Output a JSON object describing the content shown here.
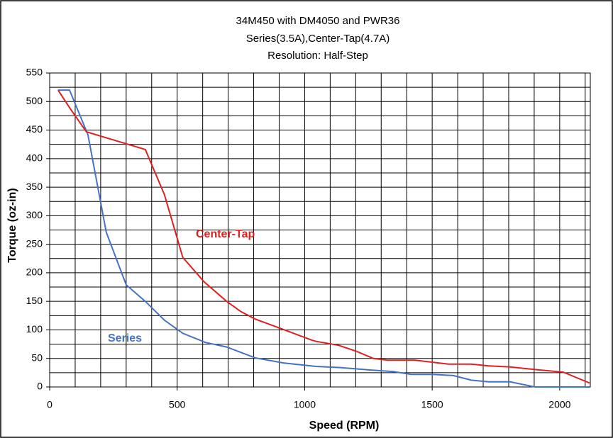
{
  "chart_data": {
    "type": "line",
    "title_lines": [
      "34M450 with DM4050 and PWR36",
      "Series(3.5A),Center-Tap(4.7A)",
      "Resolution: Half-Step"
    ],
    "x_label": "Speed (RPM)",
    "y_label": "Torque (oz-in)",
    "xlim": [
      0,
      2120
    ],
    "ylim": [
      0,
      550
    ],
    "xticks": [
      0,
      500,
      1000,
      1500,
      2000
    ],
    "yticks": [
      0,
      50,
      100,
      150,
      200,
      250,
      300,
      350,
      400,
      450,
      500,
      550
    ],
    "x_gridlines": [
      0,
      100,
      200,
      300,
      400,
      500,
      600,
      700,
      800,
      900,
      1000,
      1100,
      1200,
      1300,
      1400,
      1500,
      1600,
      1700,
      1800,
      1900,
      2000,
      2100
    ],
    "y_gridlines": [
      0,
      25,
      50,
      75,
      100,
      125,
      150,
      175,
      200,
      225,
      250,
      275,
      300,
      325,
      350,
      375,
      400,
      425,
      450,
      475,
      500,
      525,
      550
    ],
    "grid": true,
    "series": [
      {
        "name": "Series",
        "color": "#4472c4",
        "x": [
          33,
          78,
          150,
          222,
          300,
          375,
          450,
          522,
          611,
          694,
          806,
          917,
          1044,
          1139,
          1250,
          1347,
          1417,
          1500,
          1583,
          1653,
          1722,
          1806,
          1903,
          1936,
          2117
        ],
        "values": [
          520,
          520,
          442,
          271,
          179,
          150,
          117,
          94,
          78,
          70,
          51,
          42,
          36,
          34,
          30,
          27,
          22,
          22,
          20,
          12,
          9,
          9,
          0,
          0,
          0
        ]
      },
      {
        "name": "Center-Tap",
        "color": "#e02020",
        "x": [
          33,
          83,
          144,
          375,
          450,
          522,
          606,
          694,
          750,
          806,
          903,
          1028,
          1044,
          1133,
          1200,
          1269,
          1325,
          1431,
          1564,
          1653,
          1722,
          1806,
          1917,
          2014,
          2117
        ],
        "values": [
          520,
          486,
          447,
          416,
          337,
          227,
          184,
          150,
          132,
          119,
          103,
          82,
          80,
          73,
          63,
          50,
          47,
          47,
          40,
          40,
          37,
          35,
          30,
          26,
          7
        ]
      }
    ]
  }
}
